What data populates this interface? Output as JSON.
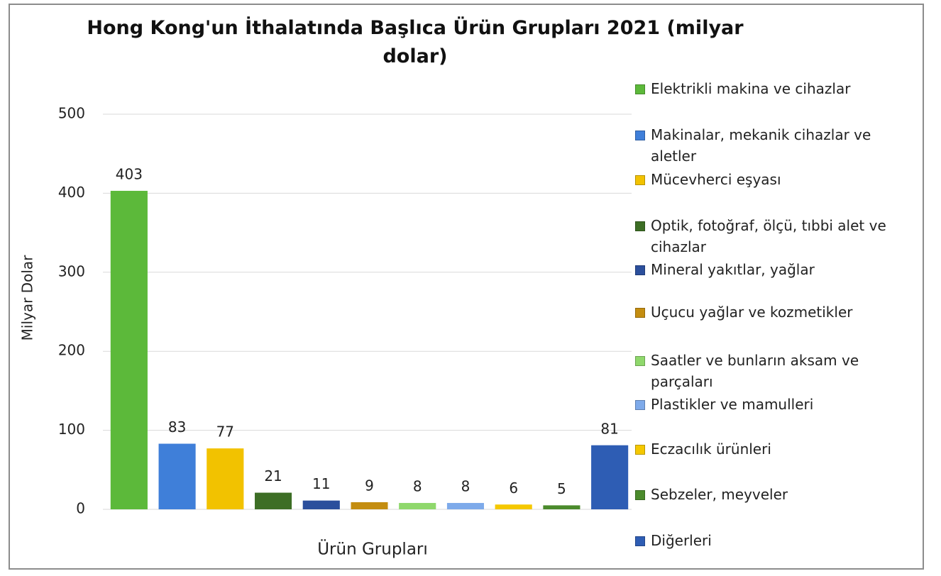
{
  "chart_data": {
    "type": "bar",
    "title": "Hong Kong'un İthalatında Başlıca Ürün Grupları 2021 (milyar dolar)",
    "x_label": "Ürün Grupları",
    "y_label": "Milyar Dolar",
    "categories": [
      "Elektrikli makina ve cihazlar",
      "Makinalar, mekanik cihazlar ve aletler",
      "Mücevherci eşyası",
      "Optik, fotoğraf, ölçü, tıbbi alet ve cihazlar",
      "Mineral yakıtlar, yağlar",
      "Uçucu yağlar ve kozmetikler",
      "Saatler ve bunların aksam ve parçaları",
      "Plastikler ve mamulleri",
      "Eczacılık ürünleri",
      "Sebzeler, meyveler",
      "Diğerleri"
    ],
    "values": [
      403,
      83,
      77,
      21,
      11,
      9,
      8,
      8,
      6,
      5,
      81
    ],
    "colors": [
      "#5cb93a",
      "#3f7fd9",
      "#f2c200",
      "#3d6e25",
      "#2b4f9c",
      "#c48d10",
      "#8fd86c",
      "#7eaaea",
      "#f5c800",
      "#4b8b2c",
      "#2e5db4"
    ],
    "ylim": [
      0,
      500
    ],
    "yticks": [
      0,
      100,
      200,
      300,
      400,
      500
    ],
    "grid": true,
    "legend": "right"
  }
}
